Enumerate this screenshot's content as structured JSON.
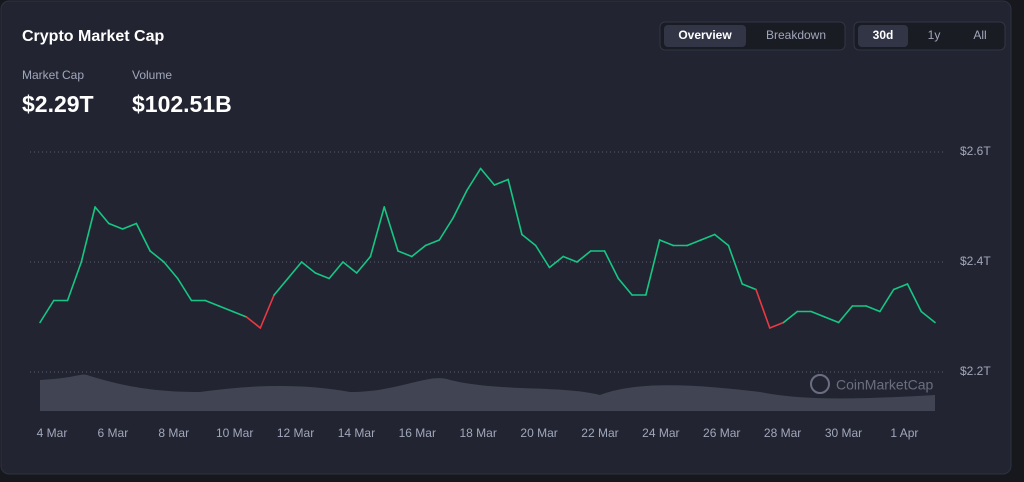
{
  "header": {
    "title": "Crypto Market Cap",
    "tabs": [
      "Overview",
      "Breakdown"
    ],
    "ranges": [
      "30d",
      "1y",
      "All"
    ],
    "stats": [
      {
        "label": "Market Cap",
        "value": "$2.29T"
      },
      {
        "label": "Volume",
        "value": "$102.51B"
      }
    ]
  },
  "watermark": "CoinMarketCap",
  "chart_data": {
    "type": "line",
    "color": "#16c784",
    "down_color": "#ea3943",
    "x_labels": [
      "4 Mar",
      "6 Mar",
      "8 Mar",
      "10 Mar",
      "12 Mar",
      "14 Mar",
      "16 Mar",
      "18 Mar",
      "20 Mar",
      "22 Mar",
      "24 Mar",
      "26 Mar",
      "28 Mar",
      "30 Mar",
      "1 Apr"
    ],
    "values": [
      2.29,
      2.33,
      2.33,
      2.4,
      2.5,
      2.47,
      2.46,
      2.47,
      2.42,
      2.4,
      2.37,
      2.33,
      2.33,
      2.32,
      2.31,
      2.3,
      2.28,
      2.34,
      2.37,
      2.4,
      2.38,
      2.37,
      2.4,
      2.38,
      2.41,
      2.5,
      2.42,
      2.41,
      2.43,
      2.44,
      2.48,
      2.53,
      2.57,
      2.54,
      2.55,
      2.45,
      2.43,
      2.39,
      2.41,
      2.4,
      2.42,
      2.42,
      2.37,
      2.34,
      2.34,
      2.44,
      2.43,
      2.43,
      2.44,
      2.45,
      2.43,
      2.36,
      2.35,
      2.28,
      2.29,
      2.31,
      2.31,
      2.3,
      2.29,
      2.32,
      2.32,
      2.31,
      2.35,
      2.36,
      2.31,
      2.29
    ],
    "ylim": [
      2.2,
      2.6
    ],
    "yticks": [
      {
        "value": 2.2,
        "label": "$2.2T"
      },
      {
        "value": 2.4,
        "label": "$2.4T"
      },
      {
        "value": 2.6,
        "label": "$2.6T"
      }
    ],
    "grid": true
  }
}
